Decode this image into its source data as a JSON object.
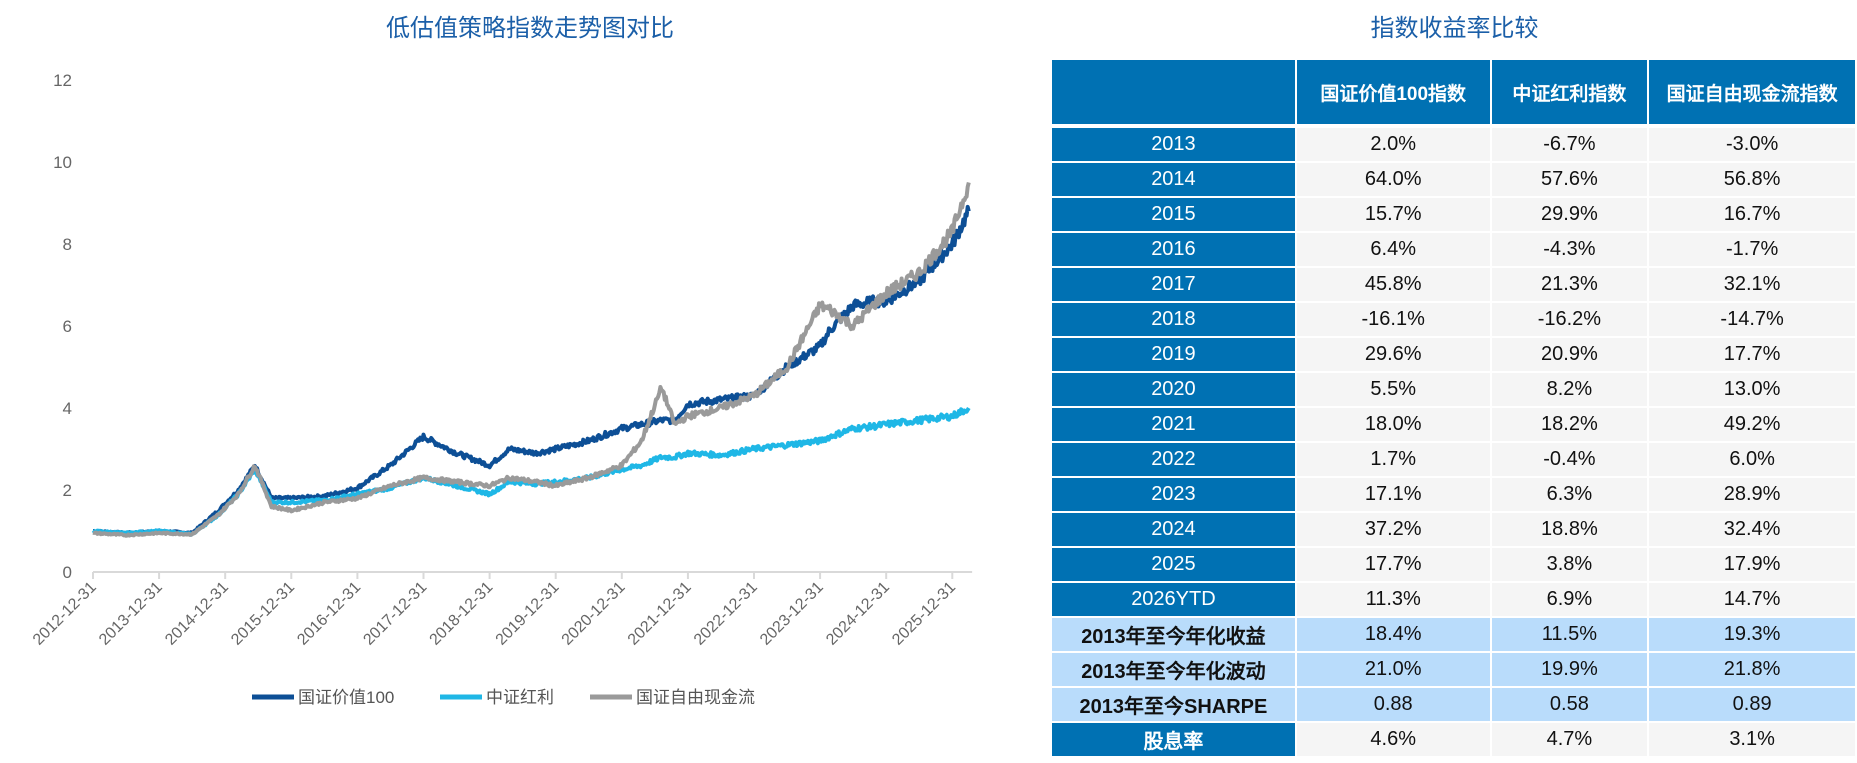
{
  "chart_data": {
    "type": "line",
    "title": "低估值策略指数走势图对比",
    "xlabel": "",
    "ylabel": "",
    "ylim": [
      0,
      12
    ],
    "yticks": [
      "0",
      "2",
      "4",
      "6",
      "8",
      "10",
      "12"
    ],
    "xlim": [
      "2012-12-31",
      "2026-04"
    ],
    "xticks": [
      "2012-12-31",
      "2013-12-31",
      "2014-12-31",
      "2015-12-31",
      "2016-12-31",
      "2017-12-31",
      "2018-12-31",
      "2019-12-31",
      "2020-12-31",
      "2021-12-31",
      "2022-12-31",
      "2023-12-31",
      "2024-12-31",
      "2025-12-31"
    ],
    "legend_position": "bottom",
    "x": [
      2013.0,
      2013.5,
      2014.0,
      2014.5,
      2014.9,
      2015.2,
      2015.45,
      2015.7,
      2016.0,
      2016.5,
      2017.0,
      2017.5,
      2018.0,
      2018.5,
      2019.0,
      2019.3,
      2019.7,
      2020.0,
      2020.5,
      2021.0,
      2021.3,
      2021.6,
      2021.8,
      2022.0,
      2022.5,
      2023.0,
      2023.5,
      2024.0,
      2024.15,
      2024.5,
      2024.8,
      2025.0,
      2025.5,
      2026.0,
      2026.25
    ],
    "series": [
      {
        "name": "国证价值100",
        "color": "#0d4f96",
        "values": [
          1.0,
          0.95,
          1.0,
          0.95,
          1.5,
          2.0,
          2.6,
          1.8,
          1.8,
          1.85,
          2.05,
          2.6,
          3.3,
          2.9,
          2.6,
          3.0,
          2.9,
          3.0,
          3.2,
          3.5,
          3.6,
          3.7,
          3.7,
          4.1,
          4.2,
          4.3,
          5.0,
          5.5,
          5.9,
          6.5,
          6.6,
          6.6,
          7.1,
          8.0,
          8.8
        ]
      },
      {
        "name": "中证红利",
        "color": "#1fb7e6",
        "values": [
          1.0,
          0.95,
          1.0,
          0.92,
          1.4,
          1.9,
          2.5,
          1.7,
          1.7,
          1.75,
          1.9,
          2.05,
          2.3,
          2.1,
          1.9,
          2.2,
          2.15,
          2.2,
          2.3,
          2.5,
          2.6,
          2.8,
          2.8,
          2.9,
          2.85,
          3.0,
          3.1,
          3.2,
          3.3,
          3.5,
          3.55,
          3.6,
          3.7,
          3.8,
          4.0
        ]
      },
      {
        "name": "国证自由现金流",
        "color": "#9a9a9a",
        "values": [
          0.95,
          0.9,
          0.95,
          0.92,
          1.4,
          1.9,
          2.6,
          1.6,
          1.5,
          1.7,
          1.8,
          2.1,
          2.3,
          2.2,
          2.1,
          2.3,
          2.2,
          2.1,
          2.3,
          2.6,
          3.2,
          4.5,
          3.6,
          3.8,
          4.0,
          4.3,
          5.0,
          6.5,
          6.4,
          6.0,
          6.5,
          6.8,
          7.3,
          8.3,
          9.5
        ]
      }
    ]
  },
  "table": {
    "title": "指数收益率比较",
    "headers": [
      "",
      "国证价值100指数",
      "中证红利指数",
      "国证自由现金流指数"
    ],
    "rows": [
      {
        "label": "2013",
        "values": [
          "2.0%",
          "-6.7%",
          "-3.0%"
        ]
      },
      {
        "label": "2014",
        "values": [
          "64.0%",
          "57.6%",
          "56.8%"
        ]
      },
      {
        "label": "2015",
        "values": [
          "15.7%",
          "29.9%",
          "16.7%"
        ]
      },
      {
        "label": "2016",
        "values": [
          "6.4%",
          "-4.3%",
          "-1.7%"
        ]
      },
      {
        "label": "2017",
        "values": [
          "45.8%",
          "21.3%",
          "32.1%"
        ]
      },
      {
        "label": "2018",
        "values": [
          "-16.1%",
          "-16.2%",
          "-14.7%"
        ]
      },
      {
        "label": "2019",
        "values": [
          "29.6%",
          "20.9%",
          "17.7%"
        ]
      },
      {
        "label": "2020",
        "values": [
          "5.5%",
          "8.2%",
          "13.0%"
        ]
      },
      {
        "label": "2021",
        "values": [
          "18.0%",
          "18.2%",
          "49.2%"
        ]
      },
      {
        "label": "2022",
        "values": [
          "1.7%",
          "-0.4%",
          "6.0%"
        ]
      },
      {
        "label": "2023",
        "values": [
          "17.1%",
          "6.3%",
          "28.9%"
        ]
      },
      {
        "label": "2024",
        "values": [
          "37.2%",
          "18.8%",
          "32.4%"
        ]
      },
      {
        "label": "2025",
        "values": [
          "17.7%",
          "3.8%",
          "17.9%"
        ]
      },
      {
        "label": "2026YTD",
        "values": [
          "11.3%",
          "6.9%",
          "14.7%"
        ]
      },
      {
        "label": "2013年至今年化收益",
        "values": [
          "18.4%",
          "11.5%",
          "19.3%"
        ],
        "kind": "stat"
      },
      {
        "label": "2013年至今年化波动",
        "values": [
          "21.0%",
          "19.9%",
          "21.8%"
        ],
        "kind": "stat"
      },
      {
        "label": "2013年至今SHARPE",
        "values": [
          "0.88",
          "0.58",
          "0.89"
        ],
        "kind": "stat"
      },
      {
        "label": "股息率",
        "values": [
          "4.6%",
          "4.7%",
          "3.1%"
        ],
        "kind": "div"
      }
    ]
  }
}
